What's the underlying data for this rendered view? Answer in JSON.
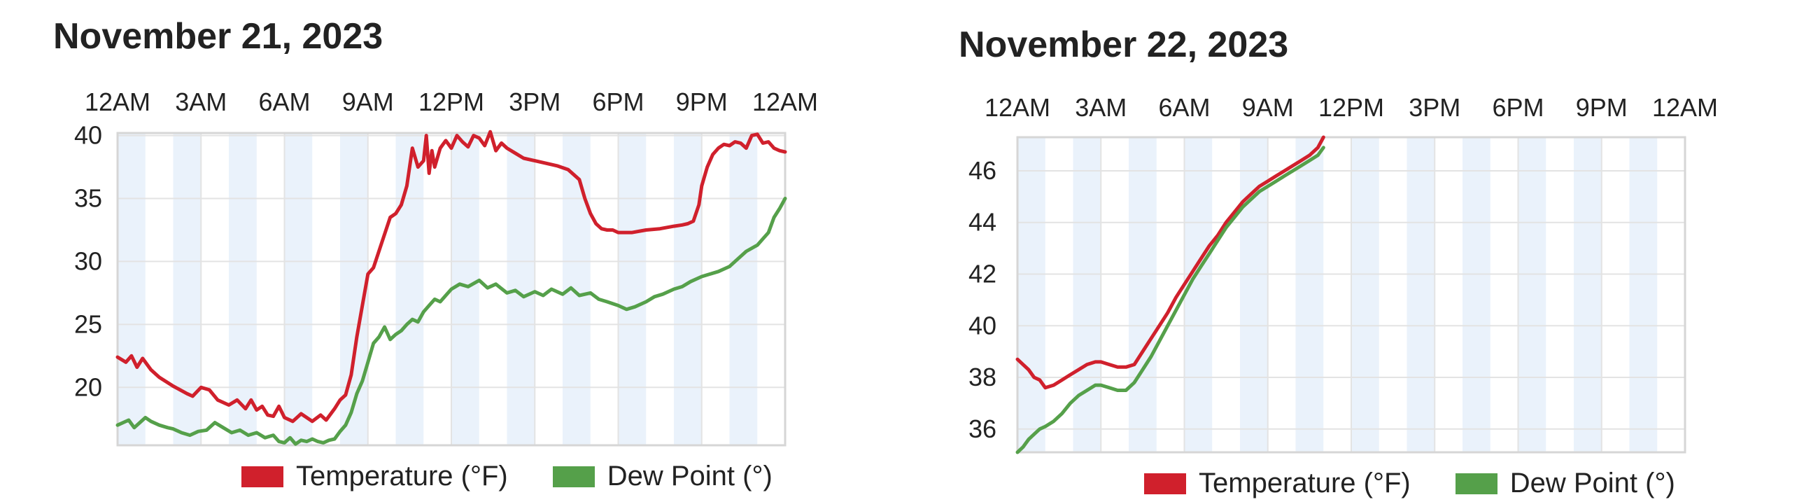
{
  "colors": {
    "temperature": "#d0202c",
    "dew_point": "#55a04a",
    "night_band": "#eaf2fb",
    "grid": "#e3e3e3",
    "frame": "#d6d6d6"
  },
  "chart_data": [
    {
      "type": "line",
      "title": "November 21, 2023",
      "x_tick_labels": [
        "12AM",
        "3AM",
        "6AM",
        "9AM",
        "12PM",
        "3PM",
        "6PM",
        "9PM",
        "12AM"
      ],
      "x_range_hours": [
        0,
        24
      ],
      "y_ticks": [
        20,
        25,
        30,
        35,
        40
      ],
      "ylim": [
        15.4,
        40.2
      ],
      "grid": true,
      "legend": "bottom",
      "series": [
        {
          "name": "Temperature (°F)",
          "color_key": "temperature",
          "x": [
            0,
            0.3,
            0.5,
            0.7,
            0.9,
            1.2,
            1.5,
            2.0,
            2.5,
            2.7,
            3.0,
            3.3,
            3.6,
            4.0,
            4.3,
            4.6,
            4.8,
            5.0,
            5.2,
            5.4,
            5.6,
            5.8,
            6.0,
            6.3,
            6.6,
            7.0,
            7.3,
            7.5,
            7.8,
            8.0,
            8.2,
            8.4,
            8.6,
            8.8,
            9.0,
            9.2,
            9.5,
            9.8,
            10.0,
            10.2,
            10.4,
            10.6,
            10.8,
            11.0,
            11.1,
            11.2,
            11.3,
            11.4,
            11.6,
            11.8,
            12.0,
            12.2,
            12.4,
            12.6,
            12.8,
            13.0,
            13.2,
            13.4,
            13.6,
            13.8,
            14.0,
            14.3,
            14.6,
            15.0,
            15.4,
            15.8,
            16.2,
            16.6,
            16.8,
            17.0,
            17.2,
            17.4,
            17.6,
            17.8,
            18.0,
            18.5,
            19.0,
            19.5,
            20.0,
            20.3,
            20.5,
            20.7,
            20.9,
            21.0,
            21.2,
            21.4,
            21.6,
            21.8,
            22.0,
            22.2,
            22.4,
            22.6,
            22.8,
            23.0,
            23.2,
            23.4,
            23.6,
            23.8,
            24.0
          ],
          "values": [
            22.4,
            22.0,
            22.5,
            21.6,
            22.3,
            21.4,
            20.8,
            20.1,
            19.5,
            19.3,
            20.0,
            19.8,
            19.0,
            18.6,
            19.0,
            18.3,
            19.0,
            18.2,
            18.5,
            17.8,
            17.7,
            18.5,
            17.6,
            17.3,
            17.9,
            17.3,
            17.8,
            17.4,
            18.3,
            19.0,
            19.4,
            21.0,
            24.0,
            26.5,
            29.0,
            29.5,
            31.5,
            33.5,
            33.8,
            34.5,
            36.0,
            39.0,
            37.5,
            38.0,
            40.0,
            37.0,
            38.8,
            37.5,
            39.0,
            39.6,
            39.0,
            40.0,
            39.5,
            39.1,
            40.0,
            39.8,
            39.2,
            40.3,
            38.8,
            39.4,
            39.0,
            38.6,
            38.2,
            38.0,
            37.8,
            37.6,
            37.3,
            36.5,
            35.0,
            33.8,
            33.0,
            32.6,
            32.5,
            32.5,
            32.3,
            32.3,
            32.5,
            32.6,
            32.8,
            32.9,
            33.0,
            33.2,
            34.5,
            36.0,
            37.5,
            38.5,
            39.0,
            39.3,
            39.2,
            39.5,
            39.4,
            39.0,
            40.0,
            40.1,
            39.4,
            39.5,
            39.0,
            38.8,
            38.7
          ]
        },
        {
          "name": "Dew Point (°)",
          "color_key": "dew_point",
          "x": [
            0,
            0.2,
            0.4,
            0.6,
            0.8,
            1.0,
            1.2,
            1.5,
            1.8,
            2.0,
            2.3,
            2.6,
            2.9,
            3.2,
            3.5,
            3.8,
            4.1,
            4.4,
            4.7,
            5.0,
            5.3,
            5.6,
            5.8,
            6.0,
            6.2,
            6.4,
            6.6,
            6.8,
            7.0,
            7.2,
            7.4,
            7.6,
            7.8,
            8.0,
            8.2,
            8.4,
            8.6,
            8.8,
            9.0,
            9.2,
            9.4,
            9.6,
            9.8,
            10.0,
            10.2,
            10.4,
            10.6,
            10.8,
            11.0,
            11.2,
            11.4,
            11.6,
            11.8,
            12.0,
            12.3,
            12.6,
            13.0,
            13.3,
            13.6,
            14.0,
            14.3,
            14.6,
            15.0,
            15.3,
            15.6,
            16.0,
            16.3,
            16.6,
            17.0,
            17.3,
            17.6,
            18.0,
            18.3,
            18.6,
            19.0,
            19.3,
            19.6,
            20.0,
            20.3,
            20.6,
            21.0,
            21.3,
            21.6,
            22.0,
            22.3,
            22.6,
            23.0,
            23.2,
            23.4,
            23.6,
            23.8,
            24.0
          ],
          "values": [
            17.0,
            17.2,
            17.4,
            16.8,
            17.2,
            17.6,
            17.3,
            17.0,
            16.8,
            16.7,
            16.4,
            16.2,
            16.5,
            16.6,
            17.2,
            16.8,
            16.4,
            16.6,
            16.2,
            16.4,
            16.0,
            16.2,
            15.7,
            15.6,
            16.0,
            15.5,
            15.8,
            15.7,
            15.9,
            15.7,
            15.6,
            15.8,
            15.9,
            16.5,
            17.0,
            18.0,
            19.5,
            20.5,
            22.0,
            23.5,
            24.0,
            24.8,
            23.8,
            24.2,
            24.5,
            25.0,
            25.4,
            25.2,
            26.0,
            26.5,
            27.0,
            26.8,
            27.3,
            27.8,
            28.2,
            28.0,
            28.5,
            27.9,
            28.2,
            27.5,
            27.7,
            27.2,
            27.6,
            27.3,
            27.8,
            27.4,
            27.9,
            27.3,
            27.5,
            27.0,
            26.8,
            26.5,
            26.2,
            26.4,
            26.8,
            27.2,
            27.4,
            27.8,
            28.0,
            28.4,
            28.8,
            29.0,
            29.2,
            29.6,
            30.2,
            30.8,
            31.3,
            31.8,
            32.3,
            33.5,
            34.2,
            35.0
          ]
        }
      ]
    },
    {
      "type": "line",
      "title": "November 22, 2023",
      "x_tick_labels": [
        "12AM",
        "3AM",
        "6AM",
        "9AM",
        "12PM",
        "3PM",
        "6PM",
        "9PM",
        "12AM"
      ],
      "x_range_hours": [
        0,
        24
      ],
      "y_ticks": [
        36,
        38,
        40,
        42,
        44,
        46
      ],
      "ylim": [
        35.1,
        47.3
      ],
      "grid": true,
      "legend": "bottom",
      "series": [
        {
          "name": "Temperature (°F)",
          "color_key": "temperature",
          "x": [
            0,
            0.2,
            0.4,
            0.6,
            0.8,
            1.0,
            1.3,
            1.6,
            1.9,
            2.2,
            2.5,
            2.8,
            3.0,
            3.3,
            3.6,
            3.9,
            4.2,
            4.5,
            4.8,
            5.1,
            5.4,
            5.7,
            6.0,
            6.3,
            6.6,
            6.9,
            7.2,
            7.5,
            7.8,
            8.1,
            8.4,
            8.7,
            9.0,
            9.3,
            9.6,
            9.9,
            10.2,
            10.5,
            10.8,
            11.0
          ],
          "values": [
            38.7,
            38.5,
            38.3,
            38.0,
            37.9,
            37.6,
            37.7,
            37.9,
            38.1,
            38.3,
            38.5,
            38.6,
            38.6,
            38.5,
            38.4,
            38.4,
            38.5,
            39.0,
            39.5,
            40.0,
            40.5,
            41.1,
            41.6,
            42.1,
            42.6,
            43.1,
            43.5,
            44.0,
            44.4,
            44.8,
            45.1,
            45.4,
            45.6,
            45.8,
            46.0,
            46.2,
            46.4,
            46.6,
            46.9,
            47.3
          ]
        },
        {
          "name": "Dew Point (°)",
          "color_key": "dew_point",
          "x": [
            0,
            0.2,
            0.4,
            0.6,
            0.8,
            1.0,
            1.3,
            1.6,
            1.9,
            2.2,
            2.5,
            2.8,
            3.0,
            3.3,
            3.6,
            3.9,
            4.2,
            4.5,
            4.8,
            5.1,
            5.4,
            5.7,
            6.0,
            6.3,
            6.6,
            6.9,
            7.2,
            7.5,
            7.8,
            8.1,
            8.4,
            8.7,
            9.0,
            9.3,
            9.6,
            9.9,
            10.2,
            10.5,
            10.8,
            11.0
          ],
          "values": [
            35.1,
            35.3,
            35.6,
            35.8,
            36.0,
            36.1,
            36.3,
            36.6,
            37.0,
            37.3,
            37.5,
            37.7,
            37.7,
            37.6,
            37.5,
            37.5,
            37.8,
            38.3,
            38.8,
            39.4,
            40.0,
            40.6,
            41.2,
            41.8,
            42.3,
            42.8,
            43.3,
            43.8,
            44.2,
            44.6,
            44.9,
            45.2,
            45.4,
            45.6,
            45.8,
            46.0,
            46.2,
            46.4,
            46.6,
            46.9
          ]
        }
      ]
    }
  ]
}
